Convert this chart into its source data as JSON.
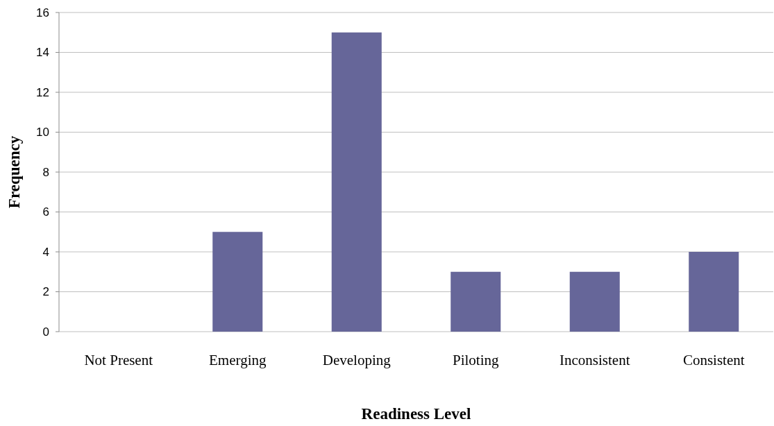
{
  "chart_data": {
    "type": "bar",
    "xlabel": "Readiness Level",
    "ylabel": "Frequency",
    "categories": [
      "Not Present",
      "Emerging",
      "Developing",
      "Piloting",
      "Inconsistent",
      "Consistent"
    ],
    "values": [
      0,
      5,
      15,
      3,
      3,
      4
    ],
    "color": "#666699",
    "ylim": [
      0,
      16
    ],
    "yticks": [
      0,
      2,
      4,
      6,
      8,
      10,
      12,
      14,
      16
    ],
    "grid": "y"
  }
}
